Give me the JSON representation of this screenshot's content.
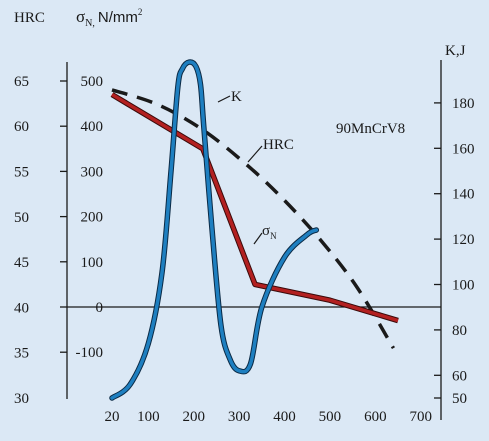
{
  "chart_data": {
    "type": "line",
    "x_axis": {
      "ticks": [
        20,
        100,
        200,
        300,
        400,
        500,
        600,
        700
      ],
      "xlim": [
        20,
        720
      ]
    },
    "y_axis_hrc": {
      "label": "HRC",
      "ticks": [
        30,
        35,
        40,
        45,
        50,
        55,
        60,
        65
      ],
      "ylim": [
        30,
        66
      ]
    },
    "y_axis_sigma": {
      "label_main": "σ",
      "label_sub": "N,",
      "label_unit": "N/mm",
      "label_sup": "2",
      "ticks": [
        -100,
        0,
        100,
        200,
        300,
        400,
        500
      ],
      "tick_labels": [
        "-100",
        "0",
        "100",
        "200",
        "300",
        "400",
        "500"
      ]
    },
    "y_axis_k": {
      "label": "K,J",
      "ticks": [
        50,
        60,
        80,
        100,
        120,
        140,
        160,
        180
      ],
      "ylim": [
        50,
        196
      ]
    },
    "annotation": "90MnCrV8",
    "series": [
      {
        "name": "HRC",
        "axis": "hrc",
        "style": "dashed",
        "color": "#1a1a1a",
        "x": [
          20,
          120,
          220,
          320,
          400,
          480,
          560,
          640
        ],
        "y": [
          64,
          62.4,
          59.6,
          55.6,
          51.8,
          47.4,
          42.2,
          35.5
        ]
      },
      {
        "name": "σN",
        "label_main": "σ",
        "label_sub": "N",
        "axis": "sigma",
        "style": "solid",
        "color": "#b32020",
        "x": [
          20,
          220,
          335,
          500,
          650
        ],
        "y": [
          470,
          350,
          50,
          15,
          -30
        ]
      },
      {
        "name": "K",
        "axis": "k",
        "style": "solid",
        "color": "#1e7fc0",
        "x": [
          20,
          60,
          100,
          130,
          150,
          165,
          175,
          190,
          205,
          215,
          222,
          240,
          260,
          280,
          300,
          325,
          350,
          400,
          450,
          470
        ],
        "y": [
          50,
          56,
          74,
          105,
          150,
          187,
          195,
          198,
          196,
          188,
          170,
          125,
          82,
          67,
          62,
          65,
          90,
          112,
          122,
          124
        ]
      }
    ],
    "colors": {
      "background": "#dbe8f5",
      "zero_line": "#1a1a1a"
    }
  }
}
